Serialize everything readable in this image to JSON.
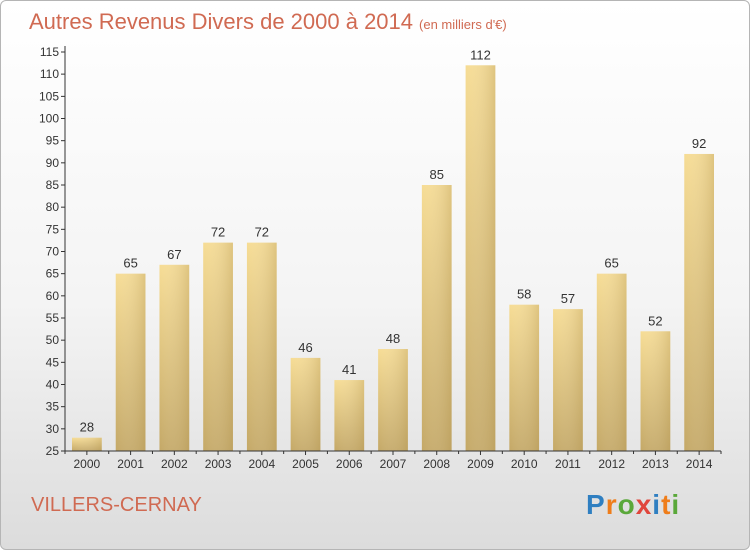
{
  "title": "Autres Revenus Divers de 2000 à 2014",
  "subtitle": "(en milliers d'€)",
  "commune": "VILLERS-CERNAY",
  "logo": {
    "letters": [
      "P",
      "r",
      "o",
      "x",
      "i",
      "t",
      "i"
    ],
    "colors": [
      "#2f7fc1",
      "#ef7d1a",
      "#5aa83a",
      "#e0463c",
      "#2f7fc1",
      "#ef7d1a",
      "#5aa83a"
    ]
  },
  "chart_data": {
    "type": "bar",
    "categories": [
      "2000",
      "2001",
      "2002",
      "2003",
      "2004",
      "2005",
      "2006",
      "2007",
      "2008",
      "2009",
      "2010",
      "2011",
      "2012",
      "2013",
      "2014"
    ],
    "values": [
      28,
      65,
      67,
      72,
      72,
      46,
      41,
      48,
      85,
      112,
      58,
      57,
      65,
      52,
      92
    ],
    "ylim": [
      25,
      115
    ],
    "yticks": [
      25,
      30,
      35,
      40,
      45,
      50,
      55,
      60,
      65,
      70,
      75,
      80,
      85,
      90,
      95,
      100,
      105,
      110,
      115
    ],
    "grid": false,
    "bar_color": "#e8cf88"
  }
}
